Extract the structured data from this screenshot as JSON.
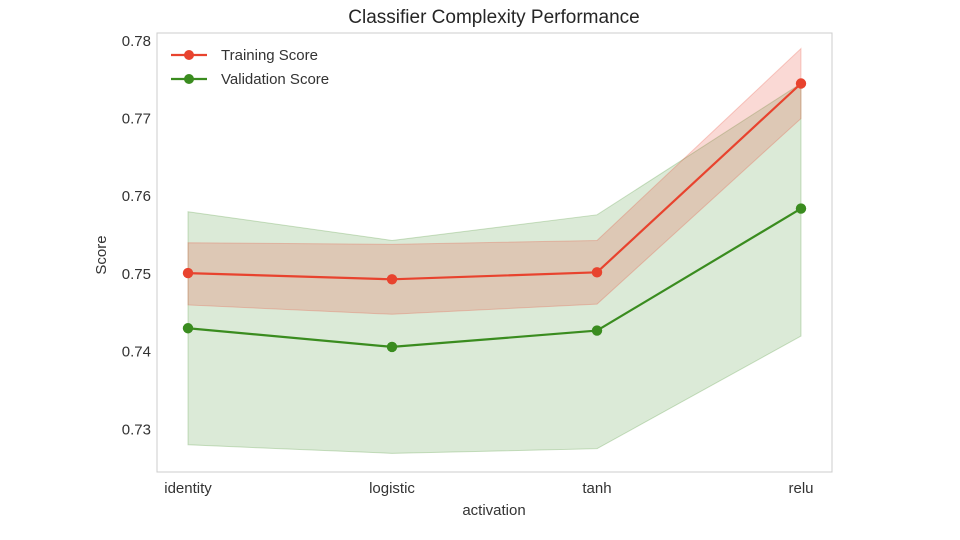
{
  "chart_data": {
    "type": "line",
    "title": "Classifier Complexity Performance",
    "xlabel": "activation",
    "ylabel": "Score",
    "categories": [
      "identity",
      "logistic",
      "tanh",
      "relu"
    ],
    "ylim": [
      0.7245,
      0.781
    ],
    "yticks": [
      0.73,
      0.74,
      0.75,
      0.76,
      0.77,
      0.78
    ],
    "ytick_labels": [
      "0.73",
      "0.74",
      "0.75",
      "0.76",
      "0.77",
      "0.78"
    ],
    "grid": false,
    "legend_position": "top-left",
    "series": [
      {
        "name": "Training Score",
        "color": "#e8432e",
        "values": [
          0.7501,
          0.7493,
          0.7502,
          0.7745
        ],
        "band_lower": [
          0.746,
          0.7448,
          0.7461,
          0.77
        ],
        "band_upper": [
          0.754,
          0.7538,
          0.7543,
          0.779
        ]
      },
      {
        "name": "Validation Score",
        "color": "#3a8c1f",
        "values": [
          0.743,
          0.7406,
          0.7427,
          0.7584
        ],
        "band_lower": [
          0.728,
          0.7269,
          0.7275,
          0.742
        ],
        "band_upper": [
          0.758,
          0.7543,
          0.7576,
          0.7745
        ]
      }
    ]
  }
}
